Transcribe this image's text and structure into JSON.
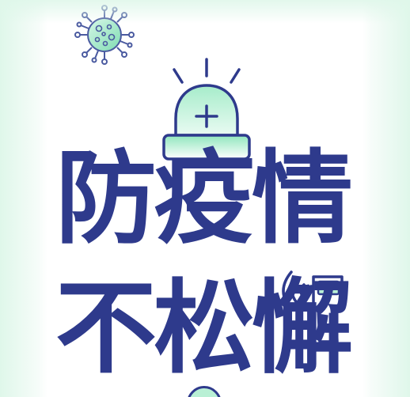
{
  "poster": {
    "headline_line1": [
      "防",
      "疫",
      "情"
    ],
    "headline_line2": [
      "不",
      "松",
      "懈"
    ]
  },
  "colors": {
    "navy": "#2e3a8c",
    "mint": "#7fe0b4",
    "mint_light": "#c9f3df",
    "background": "#ffffff"
  },
  "icons": [
    "virus-icon",
    "alarm-light-icon",
    "thermometer-gun-icon"
  ]
}
